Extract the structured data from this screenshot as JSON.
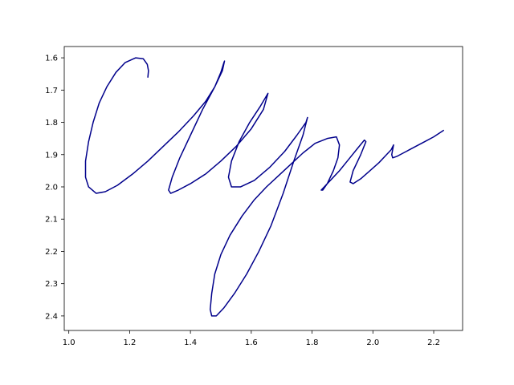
{
  "chart_data": {
    "type": "line",
    "title": "",
    "xlabel": "",
    "ylabel": "",
    "xlim": [
      0.985,
      2.295
    ],
    "ylim": [
      2.445,
      1.565
    ],
    "y_inverted": true,
    "grid": false,
    "line_color": "#00008b",
    "x_ticks": [
      1.0,
      1.2,
      1.4,
      1.6,
      1.8,
      2.0,
      2.2
    ],
    "x_tick_labels": [
      "1.0",
      "1.2",
      "1.4",
      "1.6",
      "1.8",
      "2.0",
      "2.2"
    ],
    "y_ticks": [
      1.6,
      1.7,
      1.8,
      1.9,
      2.0,
      2.1,
      2.2,
      2.3,
      2.4
    ],
    "y_tick_labels": [
      "1.6",
      "1.7",
      "1.8",
      "1.9",
      "2.0",
      "2.1",
      "2.2",
      "2.3",
      "2.4"
    ],
    "series": [
      {
        "x": [
          1.26,
          1.262,
          1.258,
          1.245,
          1.22,
          1.185,
          1.155,
          1.125,
          1.1,
          1.08,
          1.065,
          1.055,
          1.055,
          1.065,
          1.09,
          1.12,
          1.16,
          1.21,
          1.26,
          1.31,
          1.36,
          1.41,
          1.45,
          1.48,
          1.5,
          1.51,
          1.512,
          1.505,
          1.48,
          1.44,
          1.4,
          1.365,
          1.34,
          1.328,
          1.335,
          1.36,
          1.4,
          1.45,
          1.5,
          1.55,
          1.6,
          1.64,
          1.655,
          1.655,
          1.63,
          1.595,
          1.56,
          1.535,
          1.525,
          1.535,
          1.565,
          1.61,
          1.66,
          1.71,
          1.75,
          1.78,
          1.785,
          1.77,
          1.74,
          1.705,
          1.665,
          1.625,
          1.585,
          1.545,
          1.51,
          1.485,
          1.47,
          1.465,
          1.47,
          1.48,
          1.5,
          1.53,
          1.57,
          1.61,
          1.65,
          1.69,
          1.73,
          1.77,
          1.81,
          1.85,
          1.88,
          1.89,
          1.885,
          1.87,
          1.85,
          1.835,
          1.83,
          1.84,
          1.86,
          1.89,
          1.92,
          1.95,
          1.972,
          1.977,
          1.96,
          1.935,
          1.925,
          1.935,
          1.96,
          1.99,
          2.02,
          2.045,
          2.06,
          2.068,
          2.062,
          2.065,
          2.08,
          2.11,
          2.14,
          2.17,
          2.2,
          2.232
        ],
        "y": [
          1.66,
          1.64,
          1.62,
          1.603,
          1.6,
          1.615,
          1.645,
          1.69,
          1.74,
          1.8,
          1.86,
          1.92,
          1.97,
          2.0,
          2.02,
          2.015,
          1.995,
          1.96,
          1.92,
          1.875,
          1.83,
          1.78,
          1.735,
          1.69,
          1.645,
          1.615,
          1.61,
          1.64,
          1.69,
          1.76,
          1.84,
          1.91,
          1.97,
          2.01,
          2.02,
          2.01,
          1.99,
          1.96,
          1.92,
          1.875,
          1.82,
          1.76,
          1.71,
          1.71,
          1.75,
          1.8,
          1.86,
          1.92,
          1.97,
          2.0,
          2.0,
          1.98,
          1.94,
          1.89,
          1.84,
          1.8,
          1.785,
          1.84,
          1.92,
          2.02,
          2.12,
          2.2,
          2.27,
          2.33,
          2.375,
          2.4,
          2.4,
          2.38,
          2.33,
          2.27,
          2.21,
          2.15,
          2.09,
          2.04,
          2.0,
          1.965,
          1.93,
          1.895,
          1.865,
          1.85,
          1.845,
          1.87,
          1.91,
          1.95,
          1.99,
          2.01,
          2.01,
          2.0,
          1.98,
          1.95,
          1.915,
          1.88,
          1.855,
          1.86,
          1.9,
          1.95,
          1.985,
          1.99,
          1.975,
          1.95,
          1.925,
          1.9,
          1.885,
          1.87,
          1.9,
          1.91,
          1.905,
          1.89,
          1.875,
          1.86,
          1.845,
          1.825
        ]
      }
    ]
  }
}
